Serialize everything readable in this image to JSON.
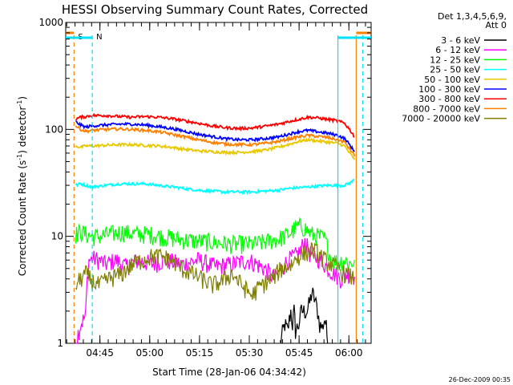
{
  "chart_data": {
    "type": "line",
    "title": "HESSI Observing Summary Count Rates, Corrected",
    "xlabel": "Start Time (28-Jan-06 04:34:42)",
    "ylabel": "Corrected Count Rate (s",
    "ylabel_exponent": "-1",
    "ylabel_suffix": ") detector",
    "ylabel_exponent2": "-1",
    "ylabel_close": ")",
    "y_scale": "log",
    "ylim": [
      1,
      1000
    ],
    "xlim_minutes": [
      0,
      92
    ],
    "x_ticks": [
      {
        "label": "04:45",
        "minute": 10.3
      },
      {
        "label": "05:00",
        "minute": 25.3
      },
      {
        "label": "05:15",
        "minute": 40.3
      },
      {
        "label": "05:30",
        "minute": 55.3
      },
      {
        "label": "05:45",
        "minute": 70.3
      },
      {
        "label": "06:00",
        "minute": 85.3
      }
    ],
    "y_ticks": [
      {
        "label": "1",
        "value": 1
      },
      {
        "label": "10",
        "value": 10
      },
      {
        "label": "100",
        "value": 100
      },
      {
        "label": "1000",
        "value": 1000
      }
    ],
    "legend_header": [
      "Det 1,3,4,5,6,9,",
      "Att 0"
    ],
    "legend_position": "right",
    "series": [
      {
        "name": "3 - 6 keV",
        "color": "#000000",
        "x": [
          64.6,
          66.0,
          66.9,
          67.8,
          68.3,
          68.8,
          69.2,
          70.2,
          71.0,
          72.0,
          72.7,
          73.5,
          74.2,
          75.1,
          75.9,
          76.5,
          77.3,
          78.0,
          78.5,
          78.9
        ],
        "y": [
          1,
          1.5,
          1.3,
          2.0,
          1.5,
          2.0,
          1.3,
          1.5,
          2.0,
          2.0,
          2.0,
          2.4,
          3.0,
          2.5,
          2.0,
          1.5,
          1.4,
          1.7,
          1.4,
          1
        ]
      },
      {
        "name": "6 - 12 keV",
        "color": "#ff00ff",
        "x": [
          3.0,
          4.5,
          6.0,
          7.0,
          8.5,
          10.0,
          12.0,
          15.0,
          18.0,
          22.0,
          26.0,
          30.0,
          35.0,
          40.0,
          45.0,
          50.0,
          55.0,
          60.0,
          63.0,
          65.0,
          67.0,
          69.0,
          70.5,
          72.0,
          73.5,
          75.0,
          77.0,
          79.0,
          81.0,
          83.0,
          85.0,
          87.0
        ],
        "y": [
          1,
          1.5,
          1.8,
          6.0,
          6.2,
          6.0,
          5.5,
          6.0,
          5.2,
          6.0,
          5.5,
          6.0,
          5.5,
          6.0,
          5.2,
          5.5,
          6.0,
          5.0,
          4.0,
          5.0,
          6.0,
          6.5,
          7.2,
          9.0,
          7.0,
          6.5,
          6.0,
          5.0,
          4.5,
          4.0,
          4.5,
          4.2
        ]
      },
      {
        "name": "12 - 25 keV",
        "color": "#00ff00",
        "x": [
          3.0,
          4.5,
          6.0,
          8.0,
          10.0,
          13.0,
          17.0,
          21.0,
          25.0,
          29.0,
          33.0,
          37.0,
          41.0,
          45.0,
          49.0,
          53.0,
          57.0,
          61.0,
          64.0,
          66.0,
          68.0,
          70.0,
          72.0,
          74.0,
          76.0,
          78.0,
          80.0,
          82.0,
          84.0,
          86.0,
          87.0
        ],
        "y": [
          10.5,
          11,
          10.5,
          10,
          10,
          10.5,
          11,
          10.5,
          10.5,
          10,
          9.5,
          9.2,
          9,
          8.8,
          8.5,
          8.5,
          8.5,
          9,
          9.5,
          10,
          11,
          12.5,
          12.0,
          10.5,
          10,
          9.5,
          6.0,
          5.8,
          6.0,
          5.5,
          6.0
        ]
      },
      {
        "name": "25 - 50 keV",
        "color": "#00ffff",
        "x": [
          3.0,
          4.5,
          6.0,
          8.0,
          12.0,
          16.0,
          20.0,
          24.0,
          28.0,
          32.0,
          36.0,
          40.0,
          44.0,
          48.0,
          52.0,
          56.0,
          60.0,
          64.0,
          67.0,
          70.0,
          73.0,
          76.0,
          79.0,
          82.0,
          84.0,
          86.0,
          87.0
        ],
        "y": [
          30,
          31,
          30,
          29,
          30,
          31,
          31,
          31,
          30,
          29,
          28,
          27,
          26.5,
          26,
          26,
          26,
          26.5,
          27,
          28,
          28.5,
          29,
          29.5,
          30,
          30,
          30,
          32,
          34
        ]
      },
      {
        "name": "50 - 100 keV",
        "color": "#e8c800",
        "x": [
          3.0,
          4.5,
          6.0,
          8.0,
          12.0,
          16.0,
          20.0,
          24.0,
          28.0,
          32.0,
          36.0,
          40.0,
          44.0,
          48.0,
          52.0,
          56.0,
          60.0,
          64.0,
          67.0,
          70.0,
          73.0,
          76.0,
          79.0,
          82.0,
          84.0,
          85.5,
          86.5,
          87.0
        ],
        "y": [
          70,
          68,
          70,
          70,
          71,
          72,
          72,
          71,
          70,
          68,
          65,
          63,
          62,
          61,
          61,
          62,
          64,
          68,
          72,
          77,
          80,
          78,
          76,
          74,
          70,
          60,
          55,
          52
        ]
      },
      {
        "name": "100 - 300 keV",
        "color": "#0000ff",
        "x": [
          3.0,
          4.5,
          6.0,
          8.0,
          12.0,
          16.0,
          20.0,
          24.0,
          28.0,
          32.0,
          36.0,
          40.0,
          44.0,
          48.0,
          52.0,
          56.0,
          60.0,
          64.0,
          67.0,
          70.0,
          73.0,
          76.0,
          79.0,
          82.0,
          84.0,
          85.5,
          86.5,
          87.0
        ],
        "y": [
          118,
          110,
          105,
          108,
          110,
          112,
          112,
          110,
          106,
          102,
          96,
          90,
          86,
          82,
          80,
          80,
          82,
          85,
          90,
          95,
          98,
          95,
          92,
          88,
          82,
          72,
          65,
          62
        ]
      },
      {
        "name": "300 - 800 keV",
        "color": "#ff0000",
        "x": [
          3.0,
          4.5,
          6.0,
          8.0,
          12.0,
          16.0,
          20.0,
          24.0,
          28.0,
          32.0,
          36.0,
          40.0,
          44.0,
          48.0,
          52.0,
          56.0,
          60.0,
          64.0,
          67.0,
          70.0,
          73.0,
          76.0,
          79.0,
          82.0,
          84.0,
          85.5,
          86.5,
          87.0
        ],
        "y": [
          125,
          130,
          132,
          135,
          135,
          132,
          130,
          132,
          130,
          126,
          120,
          114,
          108,
          104,
          102,
          103,
          107,
          112,
          118,
          124,
          130,
          128,
          124,
          120,
          114,
          100,
          90,
          85
        ]
      },
      {
        "name": "800 - 7000 keV",
        "color": "#ff8000",
        "x": [
          3.0,
          4.5,
          6.0,
          8.0,
          12.0,
          16.0,
          20.0,
          24.0,
          28.0,
          32.0,
          36.0,
          40.0,
          44.0,
          48.0,
          52.0,
          56.0,
          60.0,
          64.0,
          67.0,
          70.0,
          73.0,
          76.0,
          79.0,
          82.0,
          84.0,
          85.5,
          86.5,
          87.0
        ],
        "y": [
          108,
          100,
          96,
          98,
          100,
          101,
          100,
          98,
          95,
          90,
          85,
          80,
          76,
          73,
          72,
          72,
          74,
          77,
          81,
          85,
          88,
          86,
          84,
          80,
          76,
          66,
          60,
          56
        ]
      },
      {
        "name": "7000 - 20000 keV",
        "color": "#808000",
        "x": [
          3.0,
          4.5,
          6.0,
          8.0,
          10.0,
          13.0,
          17.0,
          20.0,
          23.0,
          26.0,
          29.0,
          32.0,
          35.0,
          38.0,
          41.0,
          44.0,
          47.0,
          50.0,
          53.0,
          56.0,
          59.0,
          62.0,
          65.0,
          68.0,
          70.0,
          72.0,
          74.0,
          76.0,
          78.0,
          80.0,
          82.0,
          84.0,
          86.0,
          87.0
        ],
        "y": [
          3.5,
          4.0,
          4.5,
          3.8,
          3.5,
          4.0,
          4.5,
          5.5,
          6.0,
          6.5,
          6.5,
          6.0,
          5.0,
          4.5,
          4.0,
          3.5,
          3.8,
          4.5,
          3.5,
          2.8,
          3.5,
          4.0,
          5.0,
          5.5,
          6.5,
          7.0,
          7.5,
          7.0,
          6.0,
          5.5,
          5.0,
          4.5,
          4.2,
          4.0
        ]
      }
    ],
    "markers": [
      {
        "label": "S",
        "minute": 2.5,
        "color": "#ff8000",
        "style": "dashed"
      },
      {
        "label": "N",
        "minute": 8.0,
        "color": "#00e0ff",
        "style": "dashed"
      },
      {
        "label": "",
        "minute": 82.0,
        "color": "#00e0ff",
        "style": "solid"
      },
      {
        "label": "",
        "minute": 87.5,
        "color": "#ff8000",
        "style": "solid"
      },
      {
        "label": "",
        "minute": 89.5,
        "color": "#00e0ff",
        "style": "dashed"
      }
    ],
    "grid": false
  },
  "footer_date": "26-Dec-2009 00:35"
}
